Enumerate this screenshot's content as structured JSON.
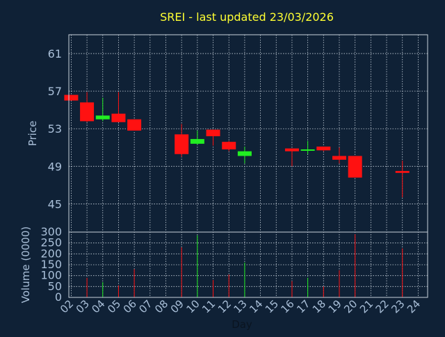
{
  "chart_data": {
    "type": "candlestick",
    "title": "SREI - last updated 23/03/2026",
    "colors": {
      "background": "#0f2136",
      "title": "#ffff33",
      "axis_text": "#a9bfd8",
      "grid": "#c8d2dc",
      "up": "#22ee22",
      "down": "#ff1111"
    },
    "x_tick_labels": [
      "02",
      "03",
      "04",
      "05",
      "06",
      "07",
      "08",
      "09",
      "10",
      "11",
      "12",
      "13",
      "14",
      "15",
      "16",
      "17",
      "18",
      "19",
      "20",
      "21",
      "22",
      "23",
      "24"
    ],
    "xlabel": "Day",
    "price_panel": {
      "ylabel": "Price",
      "ylim": [
        42,
        63
      ],
      "y_ticks": [
        45,
        49,
        53,
        57,
        61
      ],
      "candles": [
        {
          "x": "02",
          "open": 56.6,
          "high": 56.6,
          "low": 56.0,
          "close": 56.0
        },
        {
          "x": "03",
          "open": 55.8,
          "high": 56.9,
          "low": 53.7,
          "close": 53.8
        },
        {
          "x": "04",
          "open": 54.0,
          "high": 56.3,
          "low": 53.8,
          "close": 54.4
        },
        {
          "x": "05",
          "open": 54.6,
          "high": 56.9,
          "low": 53.7,
          "close": 53.7
        },
        {
          "x": "06",
          "open": 54.0,
          "high": 54.0,
          "low": 52.8,
          "close": 52.8
        },
        {
          "x": "09",
          "open": 52.4,
          "high": 53.5,
          "low": 50.0,
          "close": 50.3
        },
        {
          "x": "10",
          "open": 51.4,
          "high": 52.8,
          "low": 51.3,
          "close": 51.9
        },
        {
          "x": "11",
          "open": 52.9,
          "high": 52.9,
          "low": 51.2,
          "close": 52.2
        },
        {
          "x": "12",
          "open": 51.6,
          "high": 51.7,
          "low": 50.6,
          "close": 50.8
        },
        {
          "x": "13",
          "open": 50.1,
          "high": 51.1,
          "low": 49.3,
          "close": 50.6
        },
        {
          "x": "16",
          "open": 50.9,
          "high": 50.9,
          "low": 49.0,
          "close": 50.6
        },
        {
          "x": "17",
          "open": 50.7,
          "high": 51.7,
          "low": 50.3,
          "close": 50.8
        },
        {
          "x": "18",
          "open": 51.1,
          "high": 51.1,
          "low": 50.6,
          "close": 50.7
        },
        {
          "x": "19",
          "open": 50.1,
          "high": 51.0,
          "low": 49.3,
          "close": 49.7
        },
        {
          "x": "20",
          "open": 50.1,
          "high": 50.1,
          "low": 47.8,
          "close": 47.8
        },
        {
          "x": "23",
          "open": 48.5,
          "high": 49.6,
          "low": 45.7,
          "close": 48.3
        }
      ]
    },
    "volume_panel": {
      "ylabel": "Volume (0000)",
      "ylim": [
        0,
        300
      ],
      "y_ticks": [
        0,
        50,
        100,
        150,
        200,
        250,
        300
      ],
      "bars": [
        {
          "x": "03",
          "value": 90,
          "direction": "down"
        },
        {
          "x": "04",
          "value": 70,
          "direction": "up"
        },
        {
          "x": "05",
          "value": 55,
          "direction": "down"
        },
        {
          "x": "06",
          "value": 130,
          "direction": "down"
        },
        {
          "x": "09",
          "value": 230,
          "direction": "down"
        },
        {
          "x": "10",
          "value": 285,
          "direction": "up"
        },
        {
          "x": "11",
          "value": 80,
          "direction": "down"
        },
        {
          "x": "12",
          "value": 105,
          "direction": "down"
        },
        {
          "x": "13",
          "value": 160,
          "direction": "up"
        },
        {
          "x": "16",
          "value": 75,
          "direction": "down"
        },
        {
          "x": "17",
          "value": 90,
          "direction": "up"
        },
        {
          "x": "18",
          "value": 50,
          "direction": "down"
        },
        {
          "x": "19",
          "value": 125,
          "direction": "down"
        },
        {
          "x": "20",
          "value": 290,
          "direction": "down"
        },
        {
          "x": "23",
          "value": 225,
          "direction": "down"
        }
      ]
    }
  }
}
